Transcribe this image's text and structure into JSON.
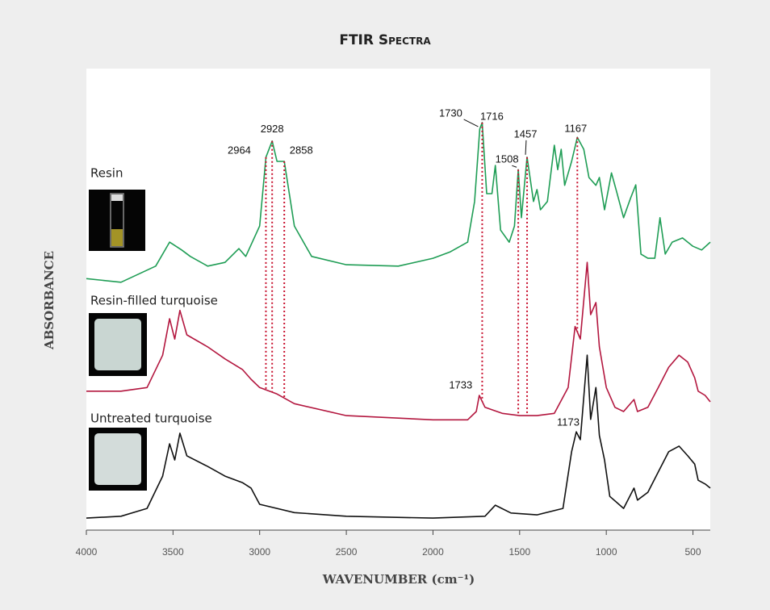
{
  "chart_data": {
    "type": "line",
    "title": "FTIR Spectra",
    "xlabel": "WAVENUMBER (cm⁻¹)",
    "ylabel": "ABSORBANCE",
    "xlim": [
      4000,
      400
    ],
    "xticks": [
      4000,
      3500,
      3000,
      2500,
      2000,
      1500,
      1000,
      500
    ],
    "ylim": [
      0,
      100
    ],
    "series": [
      {
        "name": "Resin",
        "color": "#1f9d55",
        "x": [
          4000,
          3800,
          3600,
          3520,
          3450,
          3400,
          3300,
          3200,
          3120,
          3080,
          3000,
          2964,
          2928,
          2900,
          2858,
          2800,
          2700,
          2500,
          2200,
          2000,
          1900,
          1800,
          1760,
          1730,
          1716,
          1690,
          1660,
          1640,
          1610,
          1560,
          1530,
          1508,
          1490,
          1457,
          1420,
          1400,
          1380,
          1340,
          1300,
          1280,
          1260,
          1240,
          1200,
          1167,
          1130,
          1100,
          1060,
          1040,
          1010,
          970,
          940,
          900,
          860,
          830,
          800,
          760,
          720,
          690,
          660,
          620,
          560,
          500,
          450,
          400
        ],
        "values": [
          54.5,
          53.7,
          57.2,
          62.4,
          60.7,
          59.3,
          57.2,
          58.0,
          61.0,
          59.3,
          65.9,
          80.8,
          84.3,
          79.9,
          79.9,
          65.9,
          59.3,
          57.5,
          57.2,
          58.9,
          60.3,
          62.4,
          71.2,
          86.9,
          88.3,
          72.9,
          72.9,
          79.0,
          65.0,
          62.4,
          65.9,
          78.1,
          67.7,
          80.8,
          71.2,
          73.8,
          69.4,
          71.2,
          83.4,
          78.1,
          82.5,
          74.7,
          79.9,
          85.1,
          82.5,
          76.4,
          74.7,
          76.4,
          69.4,
          77.4,
          73.3,
          67.7,
          71.9,
          74.8,
          59.8,
          58.9,
          58.9,
          67.7,
          59.8,
          62.4,
          63.3,
          61.5,
          60.7,
          62.4
        ],
        "peaks": [
          2964,
          2928,
          2858,
          1730,
          1716,
          1508,
          1457,
          1167
        ]
      },
      {
        "name": "Resin-filled turquoise",
        "color": "#b3173f",
        "x": [
          4000,
          3800,
          3650,
          3560,
          3520,
          3490,
          3460,
          3420,
          3300,
          3200,
          3100,
          3050,
          3000,
          2900,
          2800,
          2500,
          2000,
          1800,
          1750,
          1733,
          1700,
          1600,
          1500,
          1400,
          1300,
          1220,
          1180,
          1150,
          1110,
          1090,
          1060,
          1040,
          1000,
          950,
          900,
          840,
          820,
          760,
          700,
          640,
          580,
          530,
          490,
          470,
          430,
          400
        ],
        "values": [
          30.1,
          30.1,
          30.9,
          37.9,
          45.8,
          41.4,
          47.6,
          42.3,
          39.7,
          37.1,
          34.8,
          32.7,
          30.9,
          29.5,
          27.4,
          24.8,
          23.9,
          23.9,
          25.7,
          29.2,
          26.6,
          25.3,
          24.8,
          24.8,
          25.3,
          30.9,
          44.1,
          41.4,
          58.0,
          46.7,
          49.3,
          39.7,
          30.9,
          26.6,
          25.7,
          28.3,
          25.7,
          26.6,
          30.9,
          35.3,
          37.9,
          36.4,
          33.0,
          30.1,
          29.2,
          27.8
        ],
        "peaks": [
          1733
        ]
      },
      {
        "name": "Untreated turquoise",
        "color": "#111111",
        "x": [
          4000,
          3800,
          3650,
          3560,
          3520,
          3490,
          3460,
          3420,
          3300,
          3200,
          3100,
          3050,
          3000,
          2800,
          2500,
          2000,
          1700,
          1640,
          1550,
          1400,
          1250,
          1200,
          1173,
          1150,
          1110,
          1090,
          1060,
          1040,
          1010,
          980,
          900,
          840,
          820,
          760,
          700,
          640,
          580,
          530,
          490,
          470,
          430,
          400
        ],
        "values": [
          2.6,
          3.0,
          4.7,
          11.7,
          18.7,
          15.2,
          21.0,
          16.1,
          13.8,
          11.7,
          10.3,
          9.1,
          5.6,
          3.8,
          3.0,
          2.6,
          3.0,
          5.4,
          3.7,
          3.3,
          4.7,
          17.0,
          21.3,
          19.6,
          37.9,
          24.0,
          30.9,
          20.5,
          15.2,
          7.3,
          4.7,
          9.1,
          6.5,
          8.2,
          12.6,
          17.0,
          18.2,
          16.1,
          14.3,
          10.8,
          10.0,
          9.1
        ],
        "peaks": [
          1173
        ]
      }
    ]
  }
}
